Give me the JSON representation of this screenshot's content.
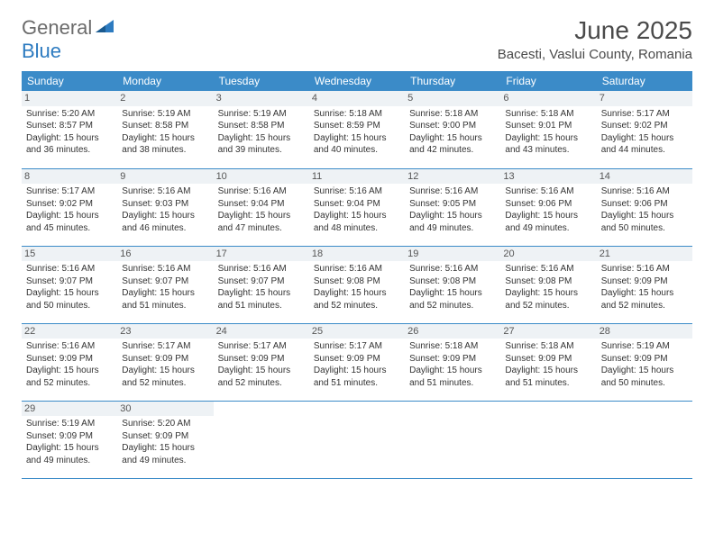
{
  "logo": {
    "part1": "General",
    "part2": "Blue"
  },
  "title": "June 2025",
  "location": "Bacesti, Vaslui County, Romania",
  "colors": {
    "header_bg": "#3b8bc8",
    "header_text": "#ffffff",
    "logo_gray": "#6b6b6b",
    "logo_blue": "#2d7bc0",
    "border": "#3b8bc8",
    "daynum_bg": "#eef2f5"
  },
  "day_headers": [
    "Sunday",
    "Monday",
    "Tuesday",
    "Wednesday",
    "Thursday",
    "Friday",
    "Saturday"
  ],
  "weeks": [
    [
      {
        "n": "1",
        "sr": "5:20 AM",
        "ss": "8:57 PM",
        "dl": "15 hours and 36 minutes."
      },
      {
        "n": "2",
        "sr": "5:19 AM",
        "ss": "8:58 PM",
        "dl": "15 hours and 38 minutes."
      },
      {
        "n": "3",
        "sr": "5:19 AM",
        "ss": "8:58 PM",
        "dl": "15 hours and 39 minutes."
      },
      {
        "n": "4",
        "sr": "5:18 AM",
        "ss": "8:59 PM",
        "dl": "15 hours and 40 minutes."
      },
      {
        "n": "5",
        "sr": "5:18 AM",
        "ss": "9:00 PM",
        "dl": "15 hours and 42 minutes."
      },
      {
        "n": "6",
        "sr": "5:18 AM",
        "ss": "9:01 PM",
        "dl": "15 hours and 43 minutes."
      },
      {
        "n": "7",
        "sr": "5:17 AM",
        "ss": "9:02 PM",
        "dl": "15 hours and 44 minutes."
      }
    ],
    [
      {
        "n": "8",
        "sr": "5:17 AM",
        "ss": "9:02 PM",
        "dl": "15 hours and 45 minutes."
      },
      {
        "n": "9",
        "sr": "5:16 AM",
        "ss": "9:03 PM",
        "dl": "15 hours and 46 minutes."
      },
      {
        "n": "10",
        "sr": "5:16 AM",
        "ss": "9:04 PM",
        "dl": "15 hours and 47 minutes."
      },
      {
        "n": "11",
        "sr": "5:16 AM",
        "ss": "9:04 PM",
        "dl": "15 hours and 48 minutes."
      },
      {
        "n": "12",
        "sr": "5:16 AM",
        "ss": "9:05 PM",
        "dl": "15 hours and 49 minutes."
      },
      {
        "n": "13",
        "sr": "5:16 AM",
        "ss": "9:06 PM",
        "dl": "15 hours and 49 minutes."
      },
      {
        "n": "14",
        "sr": "5:16 AM",
        "ss": "9:06 PM",
        "dl": "15 hours and 50 minutes."
      }
    ],
    [
      {
        "n": "15",
        "sr": "5:16 AM",
        "ss": "9:07 PM",
        "dl": "15 hours and 50 minutes."
      },
      {
        "n": "16",
        "sr": "5:16 AM",
        "ss": "9:07 PM",
        "dl": "15 hours and 51 minutes."
      },
      {
        "n": "17",
        "sr": "5:16 AM",
        "ss": "9:07 PM",
        "dl": "15 hours and 51 minutes."
      },
      {
        "n": "18",
        "sr": "5:16 AM",
        "ss": "9:08 PM",
        "dl": "15 hours and 52 minutes."
      },
      {
        "n": "19",
        "sr": "5:16 AM",
        "ss": "9:08 PM",
        "dl": "15 hours and 52 minutes."
      },
      {
        "n": "20",
        "sr": "5:16 AM",
        "ss": "9:08 PM",
        "dl": "15 hours and 52 minutes."
      },
      {
        "n": "21",
        "sr": "5:16 AM",
        "ss": "9:09 PM",
        "dl": "15 hours and 52 minutes."
      }
    ],
    [
      {
        "n": "22",
        "sr": "5:16 AM",
        "ss": "9:09 PM",
        "dl": "15 hours and 52 minutes."
      },
      {
        "n": "23",
        "sr": "5:17 AM",
        "ss": "9:09 PM",
        "dl": "15 hours and 52 minutes."
      },
      {
        "n": "24",
        "sr": "5:17 AM",
        "ss": "9:09 PM",
        "dl": "15 hours and 52 minutes."
      },
      {
        "n": "25",
        "sr": "5:17 AM",
        "ss": "9:09 PM",
        "dl": "15 hours and 51 minutes."
      },
      {
        "n": "26",
        "sr": "5:18 AM",
        "ss": "9:09 PM",
        "dl": "15 hours and 51 minutes."
      },
      {
        "n": "27",
        "sr": "5:18 AM",
        "ss": "9:09 PM",
        "dl": "15 hours and 51 minutes."
      },
      {
        "n": "28",
        "sr": "5:19 AM",
        "ss": "9:09 PM",
        "dl": "15 hours and 50 minutes."
      }
    ],
    [
      {
        "n": "29",
        "sr": "5:19 AM",
        "ss": "9:09 PM",
        "dl": "15 hours and 49 minutes."
      },
      {
        "n": "30",
        "sr": "5:20 AM",
        "ss": "9:09 PM",
        "dl": "15 hours and 49 minutes."
      },
      null,
      null,
      null,
      null,
      null
    ]
  ],
  "labels": {
    "sunrise": "Sunrise: ",
    "sunset": "Sunset: ",
    "daylight": "Daylight: "
  }
}
